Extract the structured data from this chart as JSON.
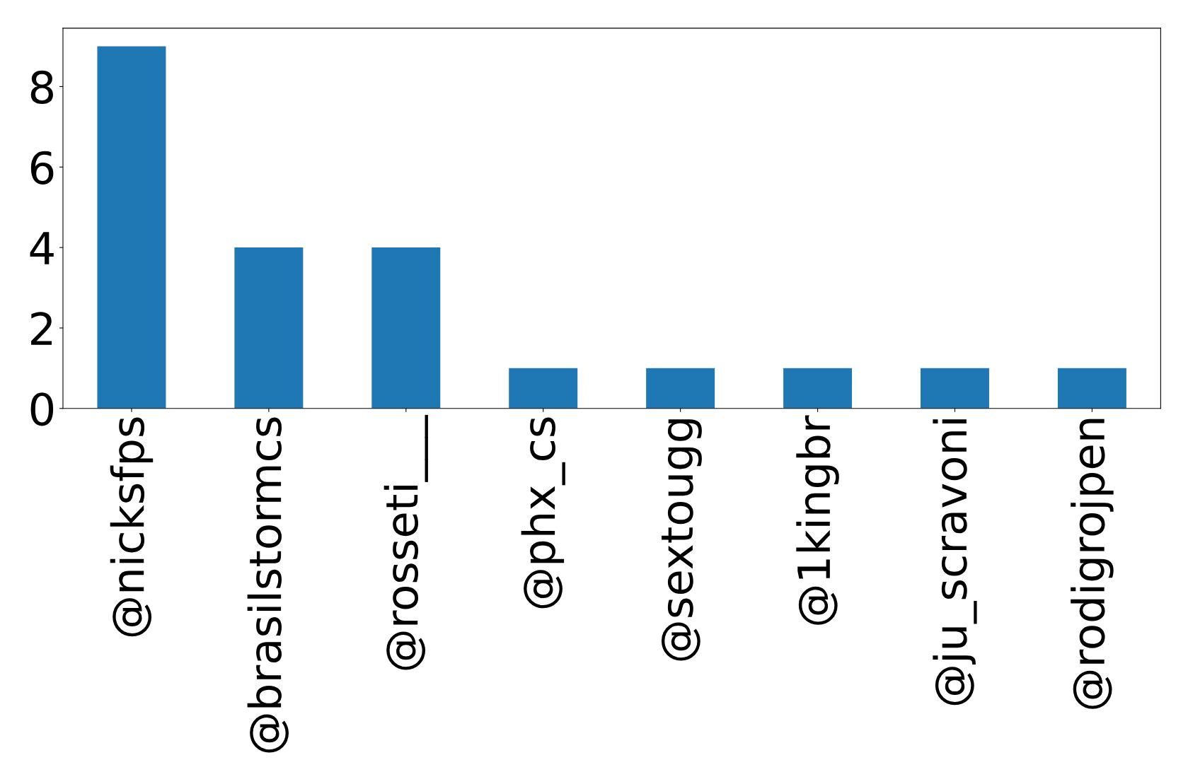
{
  "chart_data": {
    "type": "bar",
    "categories": [
      "@nicksfps",
      "@brasilstormcs",
      "@rosseti___",
      "@phx_cs",
      "@sextougg",
      "@1kingbr",
      "@ju_scravoni",
      "@rodigrojpen"
    ],
    "values": [
      9,
      4,
      4,
      1,
      1,
      1,
      1,
      1
    ],
    "color": "#1f77b4",
    "ylim": [
      0,
      9.45
    ],
    "yticks": [
      0,
      2,
      4,
      6,
      8
    ],
    "grid": false,
    "legend": false
  }
}
